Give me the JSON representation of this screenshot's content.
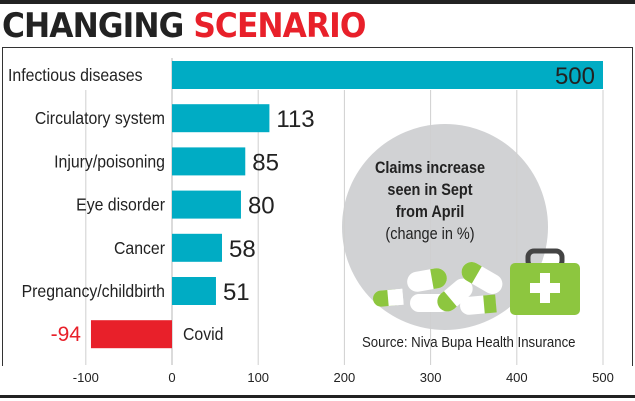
{
  "title": {
    "part1": "CHANGING",
    "part2": "SCENARIO"
  },
  "note": {
    "line1": "Claims increase",
    "line2": "seen in Sept",
    "line3": "from April",
    "line4": "(change in %)"
  },
  "source": "Source: Niva Bupa Health Insurance",
  "colors": {
    "bar": "#00acc4",
    "negative": "#e8202a",
    "accent": "#8dc63f",
    "circle": "#d1d2d4"
  },
  "chart_data": {
    "type": "bar",
    "orientation": "horizontal",
    "title": "CHANGING SCENARIO",
    "subtitle": "Claims increase seen in Sept from April (change in %)",
    "categories": [
      "Infectious diseases",
      "Circulatory system",
      "Injury/poisoning",
      "Eye disorder",
      "Cancer",
      "Pregnancy/childbirth",
      "Covid"
    ],
    "values": [
      500,
      113,
      85,
      80,
      58,
      51,
      -94
    ],
    "value_labels": [
      "500",
      "113",
      "85",
      "80",
      "58",
      "51",
      "-94"
    ],
    "xlim": [
      -100,
      500
    ],
    "xticks": [
      "-100",
      "0",
      "100",
      "200",
      "300",
      "400",
      "500"
    ],
    "xtick_values": [
      -100,
      0,
      100,
      200,
      300,
      400,
      500
    ],
    "grid": true
  }
}
